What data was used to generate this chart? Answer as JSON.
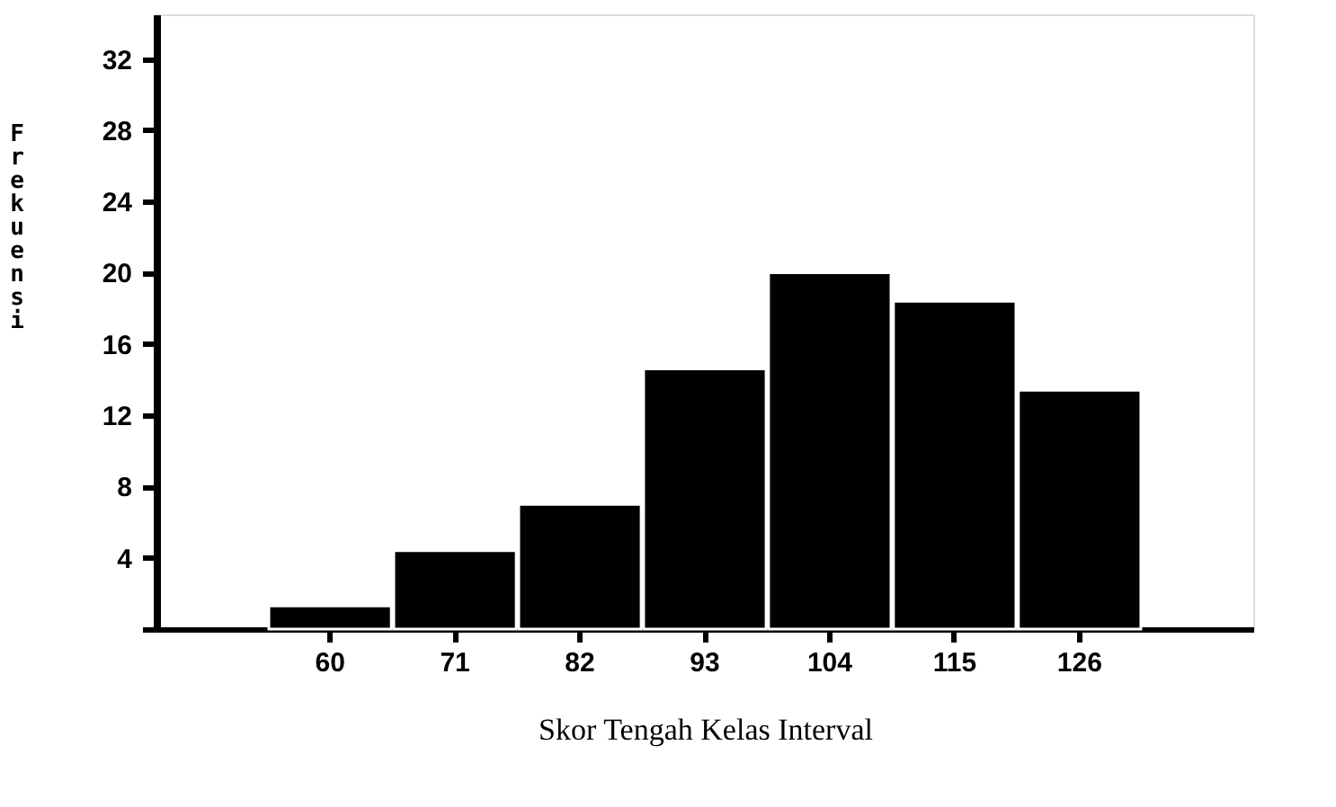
{
  "chart_data": {
    "type": "bar",
    "xlabel": "Skor Tengah Kelas Interval",
    "ylabel": "Frekuensi",
    "categories": [
      "60",
      "71",
      "82",
      "93",
      "104",
      "115",
      "126"
    ],
    "values": [
      1.3,
      4.4,
      7,
      14.6,
      20,
      18.4,
      13.4
    ],
    "color": "#000000",
    "ylim": [
      0,
      34.5
    ],
    "yticks": [
      {
        "value": 0,
        "label": null
      },
      4,
      8,
      12,
      16,
      20,
      24,
      28,
      32
    ],
    "grid": false
  }
}
